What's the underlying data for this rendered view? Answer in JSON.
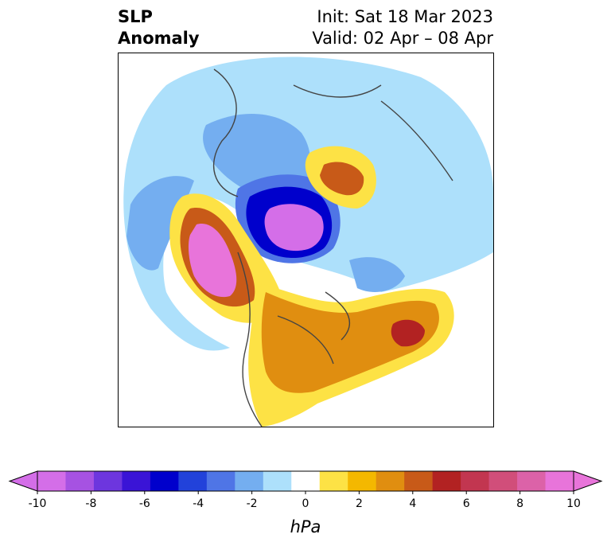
{
  "title": {
    "line1": "SLP",
    "line2": "Anomaly",
    "init": "Init: Sat 18 Mar 2023",
    "valid": "Valid: 02 Apr – 08 Apr"
  },
  "colorbar": {
    "units": "hPa",
    "ticks": [
      "-10",
      "-8",
      "-6",
      "-4",
      "-2",
      "0",
      "2",
      "4",
      "6",
      "8",
      "10"
    ],
    "levels": [
      -10,
      -9,
      -8,
      -7,
      -6,
      -5,
      -4,
      -3,
      -2,
      -1,
      1,
      2,
      3,
      4,
      5,
      6,
      7,
      8,
      9,
      10
    ],
    "colors": [
      "#d46ee8",
      "#a652e2",
      "#6d36de",
      "#3a14d6",
      "#0000cc",
      "#2242da",
      "#4f75e6",
      "#74aef0",
      "#ade0fb",
      "#ffffff",
      "#fde245",
      "#f4b800",
      "#e08e10",
      "#c85a18",
      "#b22222",
      "#c23650",
      "#d14e7a",
      "#dc62a8",
      "#e874da"
    ],
    "extend_low_color": "#d46ee8",
    "extend_high_color": "#e874da"
  }
}
